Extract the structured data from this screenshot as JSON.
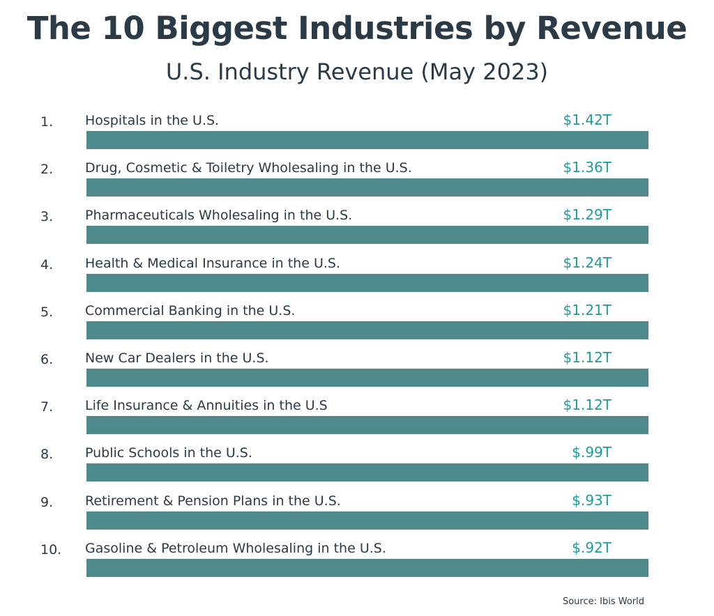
{
  "title": "The 10 Biggest Industries by Revenue",
  "subtitle": "U.S. Industry Revenue (May 2023)",
  "source": "Source: Ibis World",
  "colors": {
    "title": "#2b3a47",
    "value_text": "#1f9b9b",
    "bar": "#4e8a8b"
  },
  "chart_data": {
    "type": "bar",
    "orientation": "horizontal",
    "title": "The 10 Biggest Industries by Revenue",
    "subtitle": "U.S. Industry Revenue (May 2023)",
    "ranks": [
      "1.",
      "2.",
      "3.",
      "4.",
      "5.",
      "6.",
      "7.",
      "8.",
      "9.",
      "10."
    ],
    "categories": [
      "Hospitals in the U.S.",
      "Drug, Cosmetic & Toiletry Wholesaling in the U.S.",
      "Pharmaceuticals Wholesaling in the U.S.",
      "Health & Medical Insurance in the U.S.",
      "Commercial Banking in the U.S.",
      "New Car Dealers in the U.S.",
      "Life Insurance & Annuities in the U.S",
      "Public Schools in the U.S.",
      "Retirement & Pension Plans in the U.S.",
      "Gasoline & Petroleum Wholesaling in the U.S."
    ],
    "values": [
      1.42,
      1.36,
      1.29,
      1.24,
      1.21,
      1.12,
      1.12,
      0.99,
      0.93,
      0.92
    ],
    "value_labels": [
      "$1.42T",
      "$1.36T",
      "$1.29T",
      "$1.24T",
      "$1.21T",
      "$1.12T",
      "$1.12T",
      "$.99T",
      "$.93T",
      "$.92T"
    ],
    "unit": "T",
    "bars_equal_length": true,
    "grid": false
  }
}
